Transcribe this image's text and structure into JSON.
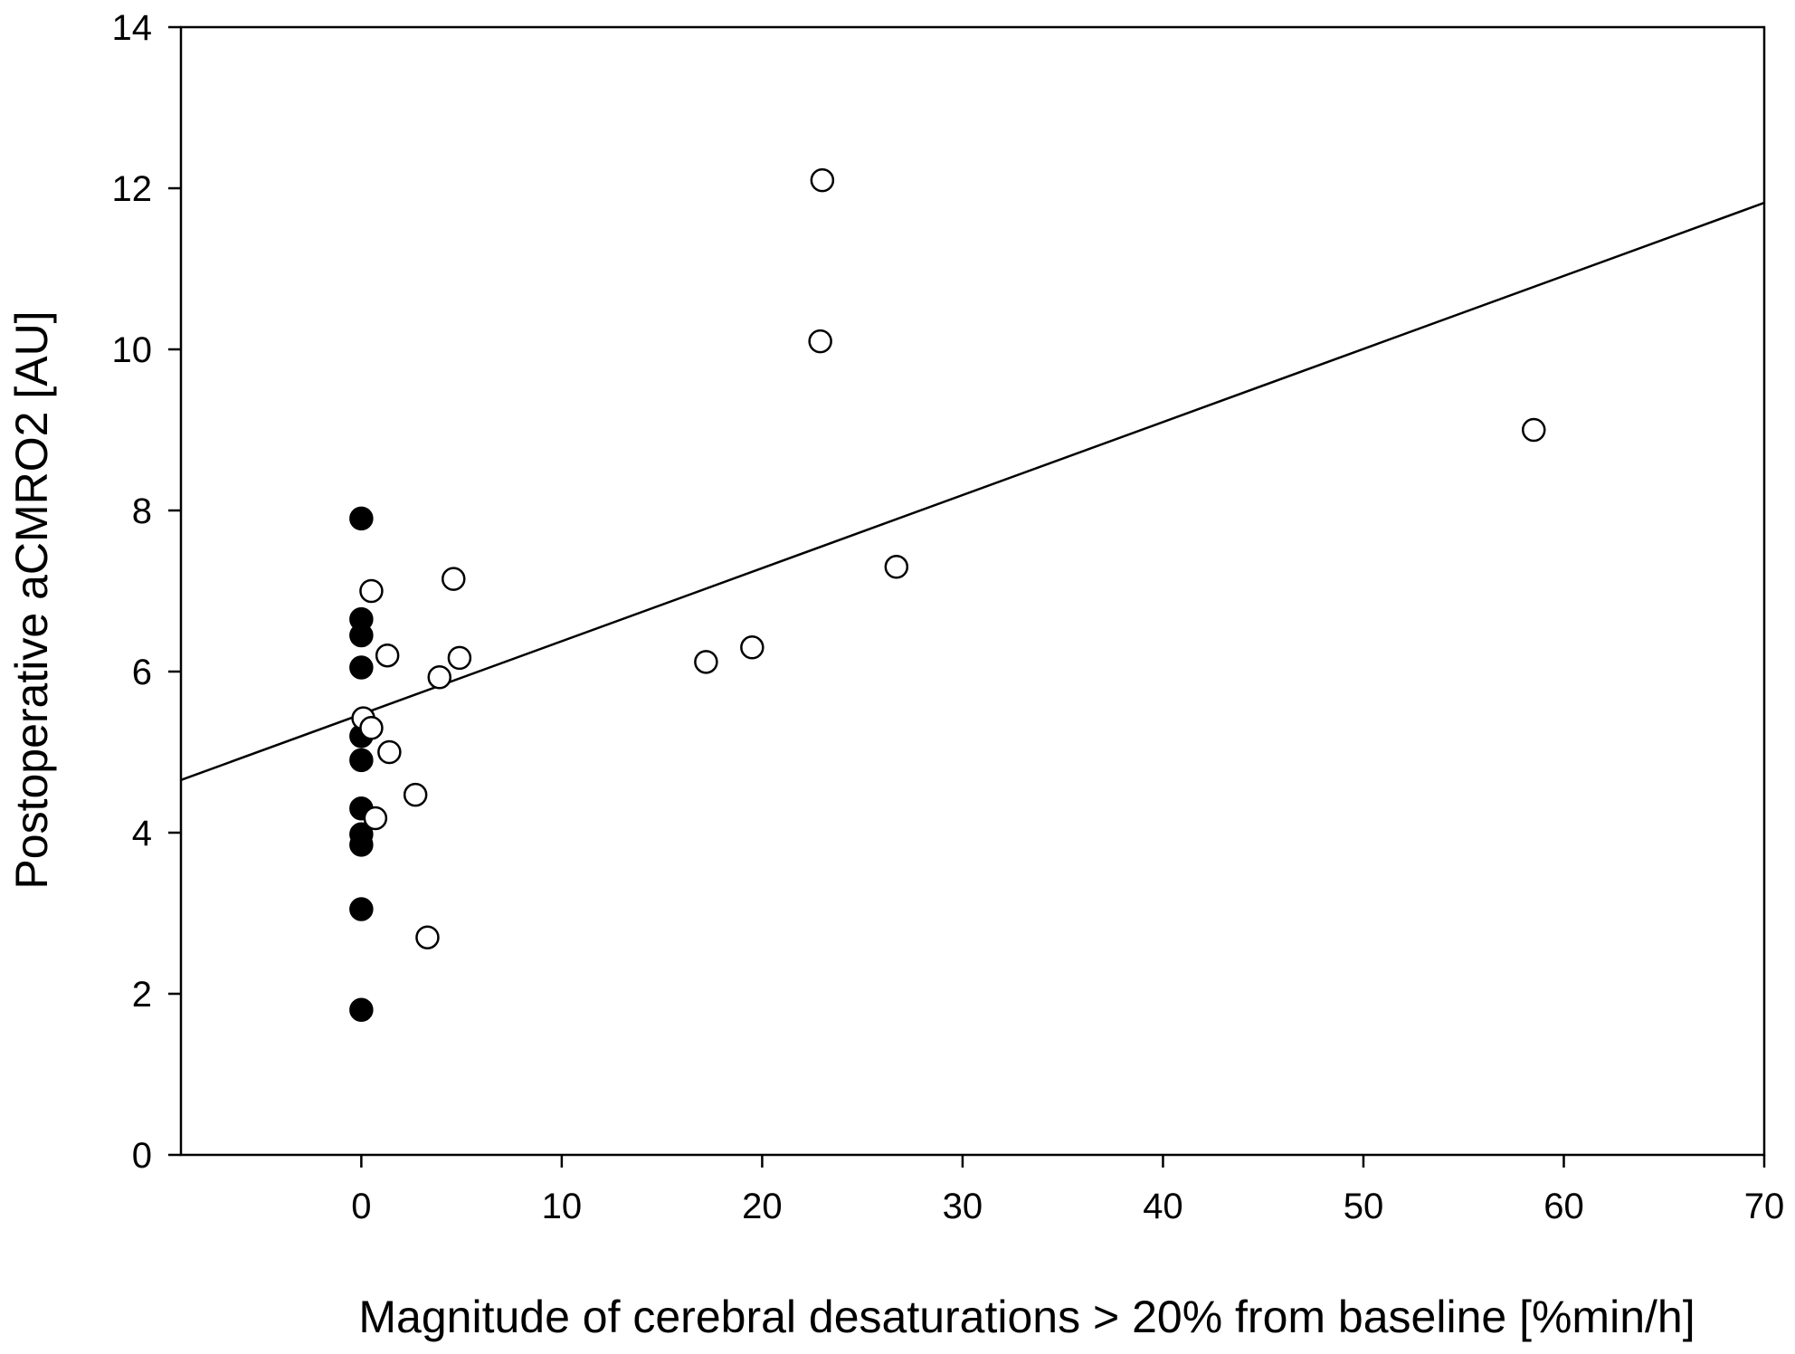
{
  "chart_data": {
    "type": "scatter",
    "title": "",
    "xlabel": "Magnitude of cerebral desaturations > 20% from baseline [%min/h]",
    "ylabel": "Postoperative aCMRO2 [AU]",
    "xlim": [
      -9,
      70
    ],
    "ylim": [
      0,
      14
    ],
    "xticks": [
      0,
      10,
      20,
      30,
      40,
      50,
      60,
      70
    ],
    "yticks": [
      0,
      2,
      4,
      6,
      8,
      10,
      12,
      14
    ],
    "grid": false,
    "legend": "none",
    "series": [
      {
        "marker": "filled-circle",
        "color": "#000000",
        "points": [
          {
            "x": 0,
            "y": 7.9
          },
          {
            "x": 0,
            "y": 6.65
          },
          {
            "x": 0,
            "y": 6.45
          },
          {
            "x": 0,
            "y": 6.05
          },
          {
            "x": 0,
            "y": 5.2
          },
          {
            "x": 0,
            "y": 4.9
          },
          {
            "x": 0,
            "y": 4.3
          },
          {
            "x": 0,
            "y": 3.98
          },
          {
            "x": 0,
            "y": 3.85
          },
          {
            "x": 0,
            "y": 3.05
          },
          {
            "x": 0,
            "y": 1.8
          }
        ]
      },
      {
        "marker": "open-circle",
        "color": "#000000",
        "points": [
          {
            "x": 23.0,
            "y": 12.1
          },
          {
            "x": 22.9,
            "y": 10.1
          },
          {
            "x": 58.5,
            "y": 9.0
          },
          {
            "x": 26.7,
            "y": 7.3
          },
          {
            "x": 0.5,
            "y": 7.0
          },
          {
            "x": 4.6,
            "y": 7.15
          },
          {
            "x": 19.5,
            "y": 6.3
          },
          {
            "x": 17.2,
            "y": 6.12
          },
          {
            "x": 1.3,
            "y": 6.2
          },
          {
            "x": 4.9,
            "y": 6.17
          },
          {
            "x": 3.9,
            "y": 5.93
          },
          {
            "x": 0.1,
            "y": 5.42
          },
          {
            "x": 0.5,
            "y": 5.3
          },
          {
            "x": 1.4,
            "y": 5.0
          },
          {
            "x": 2.7,
            "y": 4.47
          },
          {
            "x": 0.7,
            "y": 4.18
          },
          {
            "x": 3.3,
            "y": 2.7
          }
        ]
      }
    ],
    "regression_line": {
      "intercept": 5.47,
      "slope": 0.0907
    }
  }
}
